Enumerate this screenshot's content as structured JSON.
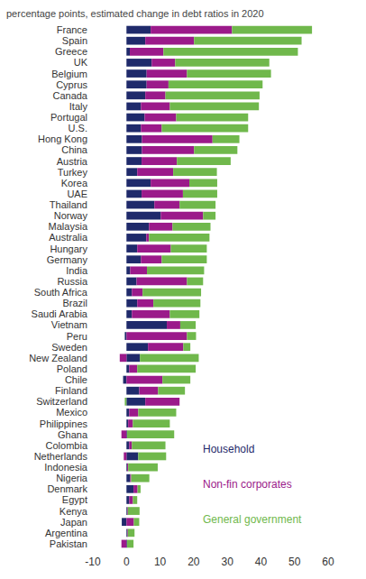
{
  "chart_data": {
    "type": "bar",
    "title": "percentage points, estimated change in debt ratios in 2020",
    "orientation": "horizontal",
    "stacked": true,
    "grid": false,
    "legend": "lower right",
    "categories": [
      "France",
      "Spain",
      "Greece",
      "UK",
      "Belgium",
      "Cyprus",
      "Canada",
      "Italy",
      "Portugal",
      "U.S.",
      "Hong Kong",
      "China",
      "Austria",
      "Turkey",
      "Korea",
      "UAE",
      "Thailand",
      "Norway",
      "Malaysia",
      "Australia",
      "Hungary",
      "Germany",
      "India",
      "Russia",
      "South Africa",
      "Brazil",
      "Saudi Arabia",
      "Vietnam",
      "Peru",
      "Sweden",
      "New Zealand",
      "Poland",
      "Chile",
      "Finland",
      "Switzerland",
      "Mexico",
      "Philippines",
      "Ghana",
      "Colombia",
      "Netherlands",
      "Indonesia",
      "Nigeria",
      "Denmark",
      "Egypt",
      "Kenya",
      "Japan",
      "Argentina",
      "Pakistan"
    ],
    "series": [
      {
        "name": "Household",
        "color": "#1f2a6b",
        "values": [
          7.2,
          5.6,
          1,
          7.5,
          6,
          6,
          5.6,
          4.3,
          5.4,
          4.3,
          4.6,
          4.6,
          4.5,
          3.2,
          7.2,
          4.5,
          8.3,
          10.2,
          6.7,
          5.9,
          3.2,
          4.3,
          1.1,
          3,
          1.6,
          3.2,
          1.6,
          12,
          -0.5,
          6.4,
          4,
          0.8,
          -1,
          3.8,
          5.6,
          0.8,
          0.5,
          0.2,
          0.8,
          3.5,
          0.2,
          1.1,
          2.1,
          0.8,
          0.2,
          -1.4,
          0.2,
          0.2
        ]
      },
      {
        "name": "Non-fin corporates",
        "color": "#9b1a8a",
        "values": [
          24.2,
          14.5,
          10,
          7,
          12,
          6.5,
          6,
          8.6,
          9.4,
          6.2,
          21,
          15.5,
          10.5,
          10.7,
          11.5,
          12.3,
          7.5,
          12.6,
          7,
          0.8,
          10,
          6.2,
          5,
          15,
          3.2,
          4.8,
          11.3,
          4,
          18,
          10.5,
          -2,
          2.4,
          10.7,
          5.6,
          10.2,
          2.7,
          1.4,
          -1.5,
          0.8,
          -0.8,
          0.3,
          0.3,
          1.2,
          1.1,
          0.2,
          2.2,
          0.2,
          -1.5
        ]
      },
      {
        "name": "General government",
        "color": "#70b84c",
        "values": [
          23.8,
          32,
          40,
          28,
          25,
          28,
          28,
          26.5,
          21.4,
          25.7,
          8,
          12.9,
          16,
          13,
          8.3,
          10.2,
          10.7,
          3.7,
          11.3,
          18,
          10.7,
          13.4,
          17,
          4.8,
          17.4,
          14,
          8.8,
          4.6,
          2.7,
          2.1,
          17.5,
          17.4,
          8.3,
          8,
          -0.5,
          11.3,
          11,
          14,
          10,
          8.3,
          8.8,
          5.4,
          0.9,
          1.3,
          3.5,
          1.6,
          2,
          1.9
        ]
      }
    ],
    "xlim": [
      -10,
      60
    ],
    "xticks": [
      -10,
      0,
      10,
      20,
      30,
      40,
      50,
      60
    ]
  }
}
